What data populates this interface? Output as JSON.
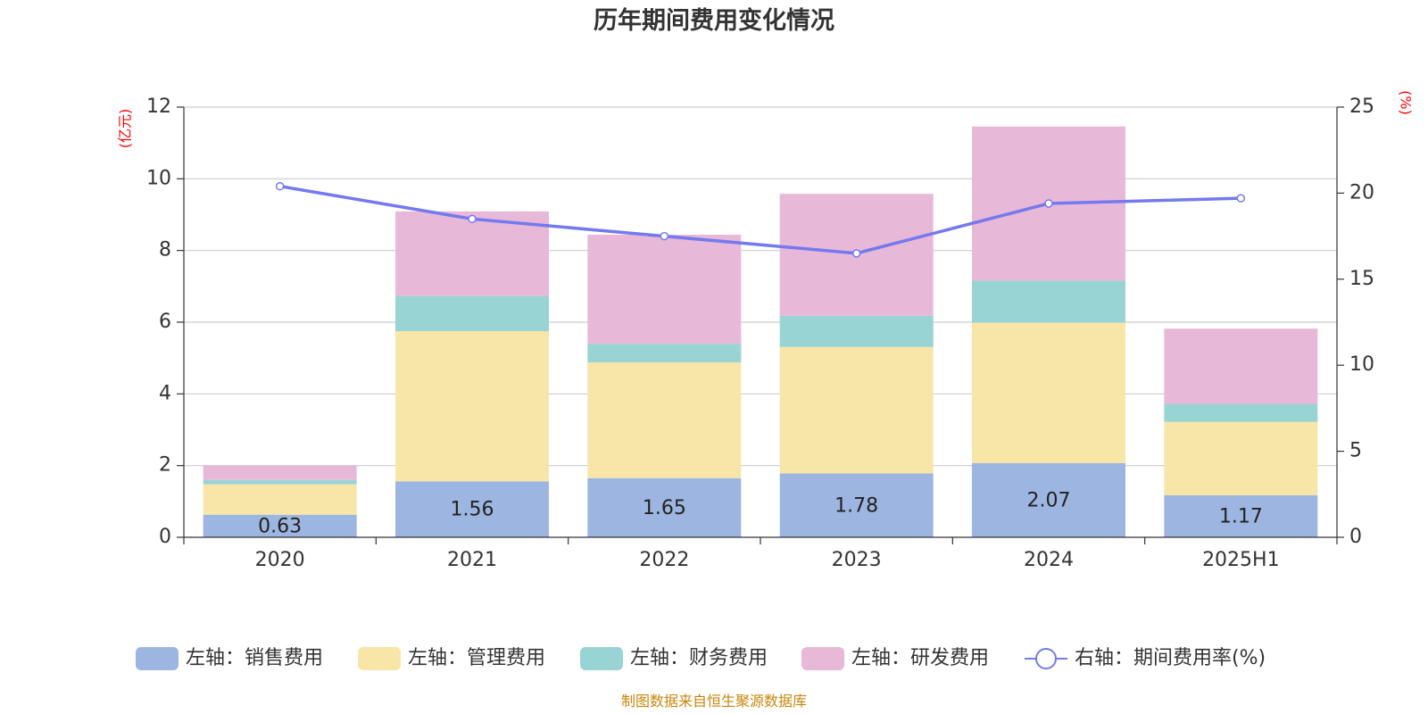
{
  "chart_data": {
    "type": "bar",
    "stacked": true,
    "title": "历年期间费用变化情况",
    "categories": [
      "2020",
      "2021",
      "2022",
      "2023",
      "2024",
      "2025H1"
    ],
    "left_axis": {
      "unit_label": "(亿元)",
      "ylim": [
        0,
        12
      ],
      "ticks": [
        "0",
        "2",
        "4",
        "6",
        "8",
        "10",
        "12"
      ]
    },
    "right_axis": {
      "unit_label": "(%)",
      "ylim": [
        0,
        25
      ],
      "ticks": [
        "0",
        "5",
        "10",
        "15",
        "20",
        "25"
      ]
    },
    "grid": true,
    "legend_position": "bottom",
    "series": [
      {
        "name": "左轴：销售费用",
        "axis": "left",
        "color": "#9db6e1",
        "values": [
          0.63,
          1.56,
          1.65,
          1.78,
          2.07,
          1.17
        ],
        "labels": [
          "0.63",
          "1.56",
          "1.65",
          "1.78",
          "2.07",
          "1.17"
        ]
      },
      {
        "name": "左轴：管理费用",
        "axis": "left",
        "color": "#f7e6a8",
        "values": [
          0.85,
          4.19,
          3.23,
          3.53,
          3.92,
          2.05
        ]
      },
      {
        "name": "左轴：财务费用",
        "axis": "left",
        "color": "#98d4d4",
        "values": [
          0.12,
          0.98,
          0.52,
          0.87,
          1.17,
          0.5
        ]
      },
      {
        "name": "左轴：研发费用",
        "axis": "left",
        "color": "#e8b8d8",
        "values": [
          0.4,
          2.36,
          3.04,
          3.4,
          4.3,
          2.1
        ]
      },
      {
        "name": "右轴：期间费用率(%)",
        "axis": "right",
        "type": "line",
        "color": "#7479ee",
        "values": [
          20.4,
          18.5,
          17.5,
          16.5,
          19.4,
          19.7
        ]
      }
    ],
    "source": "制图数据来自恒生聚源数据库"
  }
}
